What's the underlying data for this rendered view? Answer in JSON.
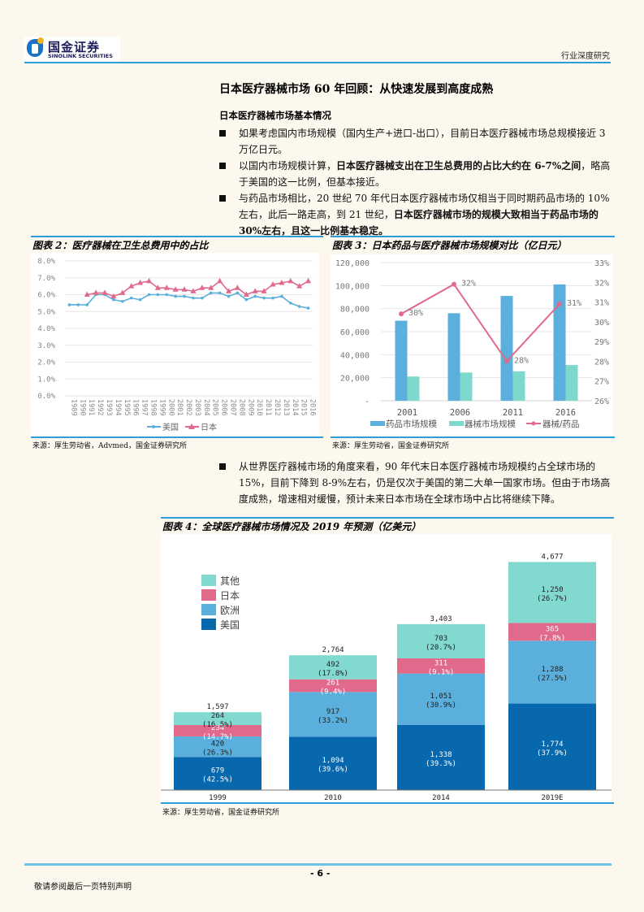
{
  "header": {
    "logo_cn": "国金证券",
    "logo_en": "SINOLINK SECURITIES",
    "report_type": "行业深度研究",
    "accent_color": "#2a9fd8"
  },
  "section": {
    "title": "日本医疗器械市场 60 年回顾：从快速发展到高度成熟",
    "subtitle": "日本医疗器械市场基本情况",
    "bullets": [
      {
        "plain": "如果考虑国内市场规模（国内生产+进口-出口），目前日本医疗器械市场总规模接近 3 万亿日元。",
        "bold": ""
      },
      {
        "plain": "以国内市场规模计算，",
        "bold": "日本医疗器械支出在卫生总费用的占比大约在 6-7%之间",
        "tail": "，略高于美国的这一比例，但基本接近。"
      },
      {
        "plain": "与药品市场相比，20 世纪 70 年代日本医疗器械市场仅相当于同时期药品市场的 10%左右，此后一路走高，到 21 世纪，",
        "bold": "日本医疗器械市场的规模大致相当于药品市场的 30%左右，且这一比例基本稳定。",
        "tail": ""
      },
      {
        "plain": "从世界医疗器械市场的角度来看，90 年代末日本医疗器械市场规模约占全球市场的 15%，目前下降到 8-9%左右，仍是仅次于美国的第二大单一国家市场。但由于市场高度成熟，增速相对缓慢，预计未来日本市场在全球市场中占比将继续下降。",
        "bold": ""
      }
    ]
  },
  "figure2": {
    "title": "图表 2：医疗器械在卫生总费用中的占比",
    "source": "来源：厚生劳动省，Advmed，国金证券研究所"
  },
  "figure3": {
    "title": "图表 3：日本药品与医疗器械市场规模对比（亿日元）",
    "source": "来源：厚生劳动省，国金证券研究所"
  },
  "figure4": {
    "title": "图表 4：全球医疗器械市场情况及 2019 年预测（亿美元）",
    "source": "来源：厚生劳动省，国金证券研究所"
  },
  "footer": {
    "page_number": "- 6 -",
    "note": "敬请参阅最后一页特别声明"
  },
  "chart_data": [
    {
      "type": "line",
      "title": "图表 2：医疗器械在卫生总费用中的占比",
      "x": [
        "1989",
        "1990",
        "1991",
        "1992",
        "1993",
        "1994",
        "1995",
        "1996",
        "1997",
        "1998",
        "1999",
        "2000",
        "2001",
        "2002",
        "2003",
        "2004",
        "2005",
        "2006",
        "2007",
        "2008",
        "2009",
        "2010",
        "2011",
        "2012",
        "2013",
        "2014",
        "2015",
        "2016"
      ],
      "series": [
        {
          "name": "美国",
          "color": "#5aafdd",
          "marker": "circle",
          "values": [
            5.4,
            5.4,
            5.4,
            6.0,
            6.0,
            5.7,
            5.6,
            5.8,
            5.7,
            6.0,
            6.0,
            6.0,
            5.9,
            5.9,
            5.8,
            5.8,
            6.1,
            6.1,
            5.9,
            6.1,
            5.7,
            5.9,
            5.8,
            5.8,
            5.9,
            5.5,
            5.3,
            5.2
          ]
        },
        {
          "name": "日本",
          "color": "#e0698c",
          "marker": "triangle",
          "values": [
            null,
            null,
            6.0,
            6.1,
            6.1,
            5.9,
            6.1,
            6.5,
            6.7,
            6.8,
            6.4,
            6.4,
            6.3,
            6.3,
            6.2,
            6.4,
            6.4,
            6.8,
            6.2,
            6.4,
            6.0,
            6.2,
            6.2,
            6.6,
            6.7,
            6.8,
            6.5,
            6.8
          ]
        }
      ],
      "xlabel": "",
      "ylabel": "",
      "yticks": [
        "0.0%",
        "1.0%",
        "2.0%",
        "3.0%",
        "4.0%",
        "5.0%",
        "6.0%",
        "7.0%",
        "8.0%"
      ],
      "ylim": [
        0,
        8
      ],
      "grid": true,
      "legend_position": "bottom"
    },
    {
      "type": "bar",
      "title": "图表 3：日本药品与医疗器械市场规模对比（亿日元）",
      "categories": [
        "2001",
        "2006",
        "2011",
        "2016"
      ],
      "series": [
        {
          "name": "药品市场规模",
          "type": "bar",
          "axis": "left",
          "color": "#5aafdd",
          "values": [
            69500,
            76000,
            91000,
            101000
          ]
        },
        {
          "name": "器械市场规模",
          "type": "bar",
          "axis": "left",
          "color": "#7fd8cc",
          "values": [
            21000,
            24500,
            25500,
            31000
          ]
        },
        {
          "name": "器械/药品",
          "type": "line",
          "axis": "right",
          "color": "#e0698c",
          "values": [
            30.4,
            31.9,
            28.0,
            30.9
          ],
          "labels": [
            "30%",
            "32%",
            "28%",
            "31%"
          ]
        }
      ],
      "yticks_left": [
        "-",
        "20,000",
        "40,000",
        "60,000",
        "80,000",
        "100,000",
        "120,000"
      ],
      "ylim_left": [
        0,
        120000
      ],
      "yticks_right": [
        "26%",
        "27%",
        "28%",
        "29%",
        "30%",
        "31%",
        "32%",
        "33%"
      ],
      "ylim_right": [
        26,
        33
      ],
      "grid": true,
      "legend_position": "bottom"
    },
    {
      "type": "bar",
      "stacked": true,
      "title": "图表 4：全球医疗器械市场情况及 2019 年预测（亿美元）",
      "categories": [
        "1999",
        "2010",
        "2014",
        "2019E"
      ],
      "totals": [
        "1,597",
        "2,764",
        "3,403",
        "4,677"
      ],
      "series": [
        {
          "name": "美国",
          "color": "#0868ad",
          "values": [
            679,
            1094,
            1338,
            1774
          ],
          "labels": [
            "679",
            "1,094",
            "1,338",
            "1,774"
          ],
          "pct": [
            "(42.5%)",
            "(39.6%)",
            "(39.3%)",
            "(37.9%)"
          ]
        },
        {
          "name": "欧洲",
          "color": "#5aafdd",
          "values": [
            420,
            917,
            1051,
            1288
          ],
          "labels": [
            "420",
            "917",
            "1,051",
            "1,288"
          ],
          "pct": [
            "(26.3%)",
            "(33.2%)",
            "(30.9%)",
            "(27.5%)"
          ]
        },
        {
          "name": "日本",
          "color": "#e0698c",
          "values": [
            234,
            261,
            311,
            365
          ],
          "labels": [
            "234",
            "261",
            "311",
            "365"
          ],
          "pct": [
            "(14.7%)",
            "(9.4%)",
            "(9.1%)",
            "(7.8%)"
          ]
        },
        {
          "name": "其他",
          "color": "#82d9cf",
          "values": [
            264,
            492,
            703,
            1250
          ],
          "labels": [
            "264",
            "492",
            "703",
            "1,250"
          ],
          "pct": [
            "(16.5%)",
            "(17.8%)",
            "(20.7%)",
            "(26.7%)"
          ]
        }
      ],
      "legend": [
        "其他",
        "日本",
        "欧洲",
        "美国"
      ],
      "legend_position": "left-top",
      "grid": false
    }
  ]
}
